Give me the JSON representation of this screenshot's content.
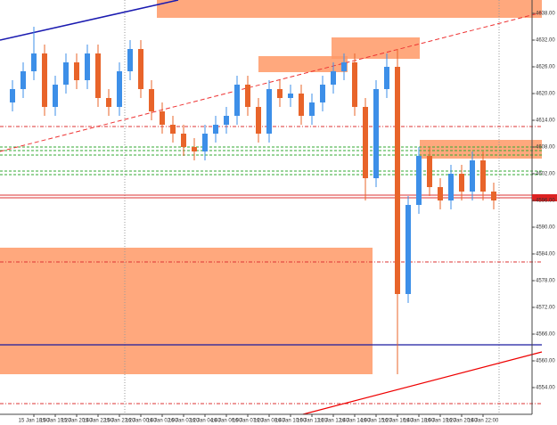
{
  "chart_data": {
    "type": "candlestick",
    "up_color": "#3d8fe8",
    "down_color": "#e8642a",
    "categories": [
      null,
      null,
      "15 Jan 18:00",
      null,
      "15 Jan 19:20",
      null,
      "15 Jan 20:40",
      null,
      "15 Jan 22:00",
      null,
      "15 Jan 23:20",
      null,
      "16 Jan 00:40",
      null,
      "16 Jan 02:00",
      null,
      "16 Jan 03:20",
      null,
      "16 Jan 04:40",
      null,
      "16 Jan 06:00",
      null,
      "16 Jan 07:20",
      null,
      "16 Jan 08:40",
      null,
      "16 Jan 10:00",
      null,
      "16 Jan 11:20",
      null,
      "16 Jan 12:40",
      null,
      "16 Jan 14:00",
      null,
      "16 Jan 15:20",
      null,
      "16 Jan 16:40",
      null,
      "16 Jan 18:00",
      null,
      "16 Jan 19:20",
      null,
      "16 Jan 20:40",
      null,
      "16 Jan 22:00",
      null
    ],
    "open": [
      4618,
      4621,
      4625,
      4629,
      4617,
      4622,
      4627,
      4623,
      4629,
      4619,
      4617,
      4625,
      4630,
      4621,
      4616,
      4613,
      4611,
      4608,
      4607,
      4611,
      4613,
      4615,
      4622,
      4617,
      4611,
      4621,
      4619,
      4620,
      4615,
      4618,
      4622,
      4625,
      4627,
      4617,
      4601,
      4621,
      4626,
      4575,
      4595,
      4606,
      4599,
      4596,
      4602,
      4598,
      4605,
      4598
    ],
    "high": [
      4623,
      4627,
      4635,
      4631,
      4624,
      4629,
      4629,
      4631,
      4631,
      4621,
      4627,
      4632,
      4632,
      4623,
      4618,
      4615,
      4613,
      4610,
      4613,
      4615,
      4617,
      4624,
      4624,
      4619,
      4623,
      4623,
      4622,
      4622,
      4620,
      4624,
      4627,
      4629,
      4629,
      4619,
      4623,
      4629,
      4630,
      4597,
      4608,
      4608,
      4601,
      4604,
      4604,
      4607,
      4607,
      4600
    ],
    "low": [
      4616,
      4619,
      4623,
      4615,
      4615,
      4620,
      4621,
      4621,
      4617,
      4615,
      4615,
      4623,
      4619,
      4614,
      4611,
      4609,
      4606,
      4605,
      4605,
      4609,
      4611,
      4613,
      4615,
      4609,
      4609,
      4617,
      4617,
      4613,
      4613,
      4616,
      4620,
      4623,
      4615,
      4596,
      4599,
      4619,
      4557,
      4573,
      4593,
      4597,
      4594,
      4594,
      4596,
      4596,
      4596,
      4594
    ],
    "close": [
      4621,
      4625,
      4629,
      4617,
      4622,
      4627,
      4623,
      4629,
      4619,
      4617,
      4625,
      4630,
      4621,
      4616,
      4613,
      4611,
      4608,
      4607,
      4611,
      4613,
      4615,
      4622,
      4617,
      4611,
      4621,
      4619,
      4620,
      4615,
      4618,
      4622,
      4625,
      4627,
      4617,
      4601,
      4621,
      4626,
      4575,
      4595,
      4606,
      4599,
      4596,
      4602,
      4598,
      4605,
      4598,
      4596
    ],
    "ylim": [
      4548,
      4641
    ],
    "yticks": [
      {
        "value": 4638,
        "label": "4638.00"
      },
      {
        "value": 4632,
        "label": "4632.00"
      },
      {
        "value": 4626,
        "label": "4626.00"
      },
      {
        "value": 4620,
        "label": "4620.00"
      },
      {
        "value": 4614,
        "label": "4614.00"
      },
      {
        "value": 4608,
        "label": "4608.00"
      },
      {
        "value": 4602,
        "label": "4602.00"
      },
      {
        "value": 4596,
        "label": "4596.00"
      },
      {
        "value": 4590,
        "label": "4590.00"
      },
      {
        "value": 4584,
        "label": "4584.00"
      },
      {
        "value": 4578,
        "label": "4578.00"
      },
      {
        "value": 4572,
        "label": "4572.00"
      },
      {
        "value": 4566,
        "label": "4566.00"
      },
      {
        "value": 4560,
        "label": "4560.00"
      },
      {
        "value": 4554,
        "label": "4554.00"
      }
    ]
  }
}
